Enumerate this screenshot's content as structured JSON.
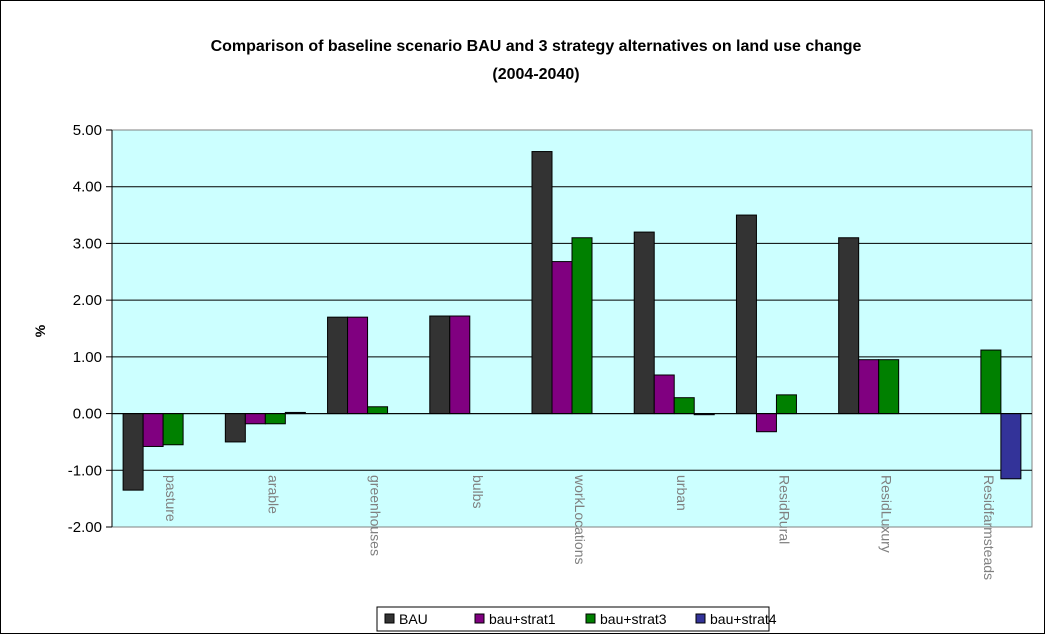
{
  "chart_data": {
    "type": "bar",
    "title_lines": [
      "Comparison of baseline scenario BAU and 3 strategy alternatives on land use change",
      "(2004-2040)"
    ],
    "ylabel": "%",
    "xlabel": "",
    "ylim": [
      -2,
      5
    ],
    "ytick_values": [
      5,
      4,
      3,
      2,
      1,
      0,
      -1,
      -2
    ],
    "ytick_labels": [
      "5.00",
      "4.00",
      "3.00",
      "2.00",
      "1.00",
      "0.00",
      "-1.00",
      "-2.00"
    ],
    "grid": true,
    "legend_position": "bottom",
    "plot_background": "#ccffff",
    "categories": [
      "pasture",
      "arable",
      "greenhouses",
      "bulbs",
      "workLocations",
      "urban",
      "ResidRural",
      "ResidLuxury",
      "Residfarmsteads"
    ],
    "series": [
      {
        "name": "BAU",
        "color": "#333333",
        "values": [
          -1.35,
          -0.5,
          1.7,
          1.72,
          4.62,
          3.2,
          3.5,
          3.1,
          0
        ]
      },
      {
        "name": "bau+strat1",
        "color": "#800080",
        "values": [
          -0.58,
          -0.18,
          1.7,
          1.72,
          2.68,
          0.68,
          -0.32,
          0.95,
          0
        ]
      },
      {
        "name": "bau+strat3",
        "color": "#008000",
        "values": [
          -0.55,
          -0.18,
          0.12,
          0,
          3.1,
          0.28,
          0.33,
          0.95,
          1.12
        ]
      },
      {
        "name": "bau+strat4",
        "color": "#333399",
        "values": [
          0,
          0.02,
          0,
          0,
          0,
          -0.02,
          0,
          0,
          -1.15
        ]
      }
    ]
  }
}
